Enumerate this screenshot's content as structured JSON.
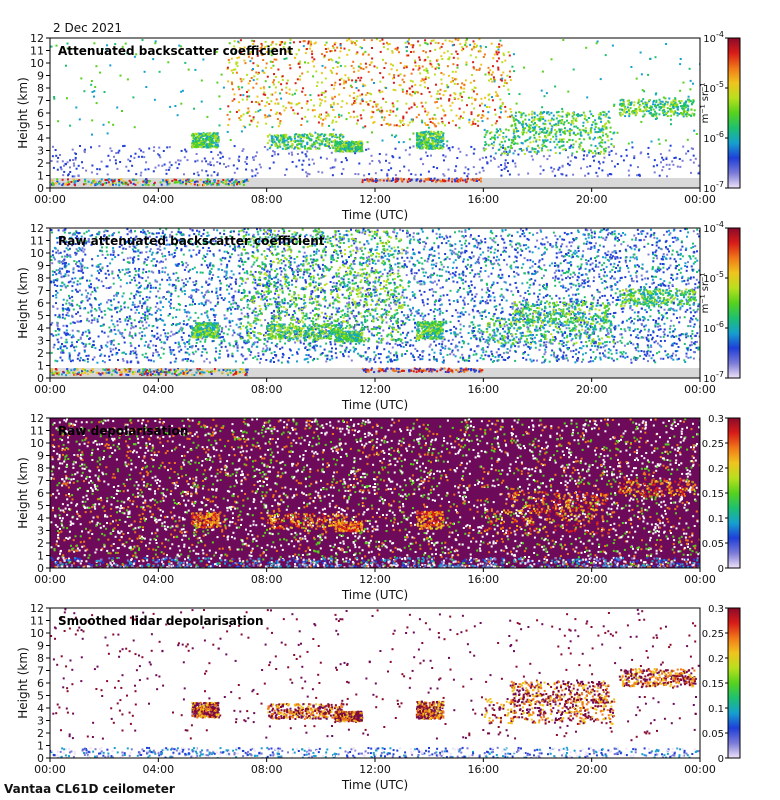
{
  "date": "2 Dec 2021",
  "footer": "Vantaa CL61D ceilometer",
  "x_axis_label": "Time (UTC)",
  "y_axis_label": "Height (km)",
  "backscatter_unit": "m⁻¹ sr⁻¹",
  "colors": {
    "ground": "#d8d8d8",
    "palette": [
      "#efe3f7",
      "#7a7ad8",
      "#1f3fd8",
      "#16a0d0",
      "#1ec070",
      "#56d21e",
      "#b8e01e",
      "#f0c41e",
      "#f07818",
      "#d81c18",
      "#8a0a2a"
    ],
    "depol_background": "#6e0a5a"
  },
  "chart_data": [
    {
      "type": "heatmap",
      "title": "Attenuated backscatter coefficient",
      "xlabel": "Time (UTC)",
      "ylabel": "Height (km)",
      "x_ticks": [
        "00:00",
        "04:00",
        "08:00",
        "12:00",
        "16:00",
        "20:00",
        "00:00"
      ],
      "y_ticks": [
        "0",
        "1",
        "2",
        "3",
        "4",
        "5",
        "6",
        "7",
        "8",
        "9",
        "10",
        "11",
        "12"
      ],
      "ylim": [
        0,
        12
      ],
      "xlim_hours": [
        0,
        24
      ],
      "colorbar": {
        "scale": "log",
        "ticks": [
          "10-7",
          "10-6",
          "10-5",
          "10-4"
        ],
        "range": [
          1e-07,
          0.0001
        ],
        "unit": "m-1 sr-1"
      }
    },
    {
      "type": "heatmap",
      "title": "Raw attenuated backscatter coefficient",
      "xlabel": "Time (UTC)",
      "ylabel": "Height (km)",
      "x_ticks": [
        "00:00",
        "04:00",
        "08:00",
        "12:00",
        "16:00",
        "20:00",
        "00:00"
      ],
      "y_ticks": [
        "0",
        "1",
        "2",
        "3",
        "4",
        "5",
        "6",
        "7",
        "8",
        "9",
        "10",
        "11",
        "12"
      ],
      "ylim": [
        0,
        12
      ],
      "xlim_hours": [
        0,
        24
      ],
      "colorbar": {
        "scale": "log",
        "ticks": [
          "10-7",
          "10-6",
          "10-5",
          "10-4"
        ],
        "range": [
          1e-07,
          0.0001
        ],
        "unit": "m-1 sr-1"
      }
    },
    {
      "type": "heatmap",
      "title": "Raw depolarisation",
      "xlabel": "Time (UTC)",
      "ylabel": "Height (km)",
      "x_ticks": [
        "00:00",
        "04:00",
        "08:00",
        "12:00",
        "16:00",
        "20:00",
        "00:00"
      ],
      "y_ticks": [
        "0",
        "1",
        "2",
        "3",
        "4",
        "5",
        "6",
        "7",
        "8",
        "9",
        "10",
        "11",
        "12"
      ],
      "ylim": [
        0,
        12
      ],
      "xlim_hours": [
        0,
        24
      ],
      "colorbar": {
        "scale": "linear",
        "ticks": [
          "0",
          "0.05",
          "0.1",
          "0.15",
          "0.2",
          "0.25",
          "0.3"
        ],
        "range": [
          0,
          0.3
        ]
      }
    },
    {
      "type": "heatmap",
      "title": "Smoothed lidar depolarisation",
      "xlabel": "Time (UTC)",
      "ylabel": "Height (km)",
      "x_ticks": [
        "00:00",
        "04:00",
        "08:00",
        "12:00",
        "16:00",
        "20:00",
        "00:00"
      ],
      "y_ticks": [
        "0",
        "1",
        "2",
        "3",
        "4",
        "5",
        "6",
        "7",
        "8",
        "9",
        "10",
        "11",
        "12"
      ],
      "ylim": [
        0,
        12
      ],
      "xlim_hours": [
        0,
        24
      ],
      "colorbar": {
        "scale": "linear",
        "ticks": [
          "0",
          "0.05",
          "0.1",
          "0.15",
          "0.2",
          "0.25",
          "0.3"
        ],
        "range": [
          0,
          0.3
        ]
      }
    }
  ]
}
